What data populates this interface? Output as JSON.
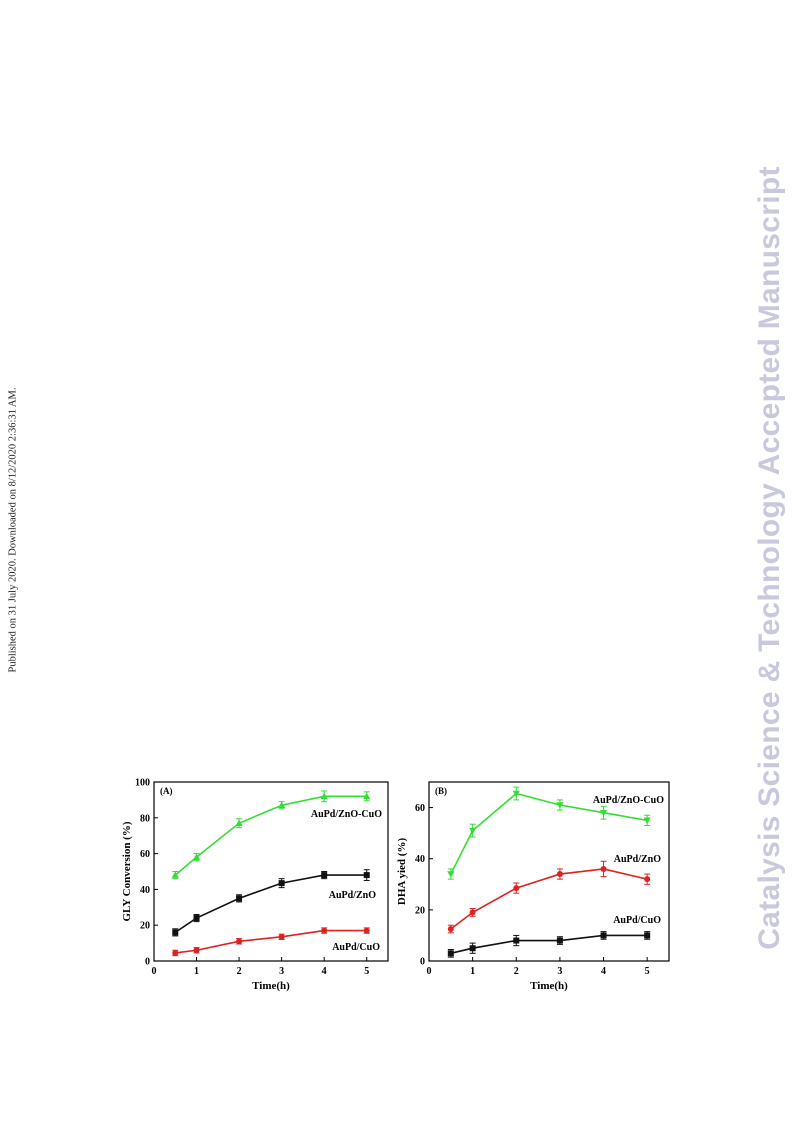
{
  "side_note": "Published on 31 July 2020. Downloaded on 8/12/2020 2:36:31 AM.",
  "watermark": "Catalysis Science & Technology Accepted Manuscript",
  "chart_data": [
    {
      "type": "line",
      "panel_label": "(A)",
      "xlabel": "Time(h)",
      "ylabel": "GLY Conversion (%)",
      "xlim": [
        0,
        5.5
      ],
      "ylim": [
        0,
        100
      ],
      "xticks": [
        0,
        1,
        2,
        3,
        4,
        5
      ],
      "yticks": [
        0,
        20,
        40,
        60,
        80,
        100
      ],
      "x": [
        0.5,
        1,
        2,
        3,
        4,
        5
      ],
      "series": [
        {
          "name": "AuPd/ZnO-CuO",
          "color": "#33dd33",
          "marker": "triangle-up",
          "values": [
            48,
            58,
            77,
            87,
            92,
            92
          ],
          "errors": [
            2,
            2,
            2.5,
            2,
            3,
            2.5
          ]
        },
        {
          "name": "AuPd/ZnO",
          "color": "#111111",
          "marker": "square",
          "values": [
            16,
            24,
            35,
            43.5,
            48,
            48
          ],
          "errors": [
            2,
            2,
            2,
            2.5,
            2,
            3
          ]
        },
        {
          "name": "AuPd/CuO",
          "color": "#dd2222",
          "marker": "circle",
          "values": [
            4.5,
            6,
            11,
            13.5,
            17,
            17
          ],
          "errors": [
            1.5,
            1.5,
            1.5,
            1.5,
            1.5,
            1.5
          ]
        }
      ]
    },
    {
      "type": "line",
      "panel_label": "(B)",
      "xlabel": "Time(h)",
      "ylabel": "DHA yied (%)",
      "xlim": [
        0,
        5.5
      ],
      "ylim": [
        0,
        70
      ],
      "xticks": [
        0,
        1,
        2,
        3,
        4,
        5
      ],
      "yticks": [
        0,
        20,
        40,
        60
      ],
      "x": [
        0.5,
        1,
        2,
        3,
        4,
        5
      ],
      "series": [
        {
          "name": "AuPd/ZnO-CuO",
          "color": "#33dd33",
          "marker": "triangle-down",
          "values": [
            34,
            51,
            65.5,
            61,
            58,
            55
          ],
          "errors": [
            2,
            2.5,
            2.5,
            2,
            2.5,
            2
          ]
        },
        {
          "name": "AuPd/ZnO",
          "color": "#dd2222",
          "marker": "circle",
          "values": [
            12.5,
            19,
            28.5,
            34,
            36,
            32
          ],
          "errors": [
            1.5,
            1.5,
            2,
            2,
            3,
            2
          ]
        },
        {
          "name": "AuPd/CuO",
          "color": "#111111",
          "marker": "square",
          "values": [
            3,
            5,
            8,
            8,
            10,
            10
          ],
          "errors": [
            1.5,
            2,
            2,
            1.5,
            1.5,
            1.5
          ]
        }
      ]
    }
  ]
}
